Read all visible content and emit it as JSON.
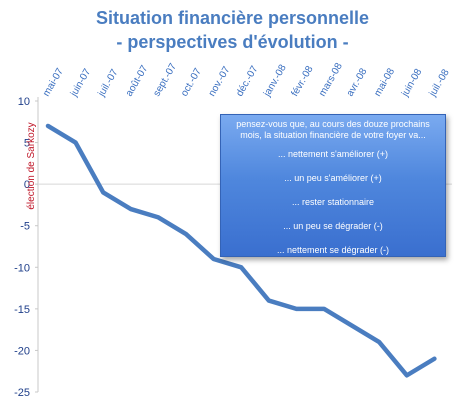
{
  "chart_data": {
    "type": "line",
    "title": "Situation financière personnelle",
    "subtitle": "-  perspectives d'évolution -",
    "categories": [
      "mai-07",
      "juin-07",
      "juil.-07",
      "août-07",
      "sept.-07",
      "oct.-07",
      "nov.-07",
      "déc.-07",
      "janv.-08",
      "févr.-08",
      "mars-08",
      "avr.-08",
      "mai-08",
      "juin-08",
      "juil.-08"
    ],
    "series": [
      {
        "values": [
          7,
          5,
          -1,
          -3,
          -4,
          -6,
          -9,
          -10,
          -14,
          -15,
          -15,
          -17,
          -19,
          -23,
          -21
        ]
      }
    ],
    "ylim": [
      -25,
      10
    ],
    "yticks": [
      10,
      5,
      0,
      -5,
      -10,
      -15,
      -20,
      -25
    ],
    "grid": false,
    "annotation": "élection de Sarkozy",
    "line_color": "#4a7dc0",
    "annotation_color": "#c0182a"
  },
  "legend_box": {
    "header": "pensez-vous que, au cours des douze prochains mois, la situation financière de votre foyer va...",
    "items": [
      "... nettement s'améliorer (+)",
      "... un peu s'améliorer (+)",
      "... rester stationnaire",
      "... un peu se dégrader (-)",
      "... nettement se dégrader (-)"
    ]
  }
}
